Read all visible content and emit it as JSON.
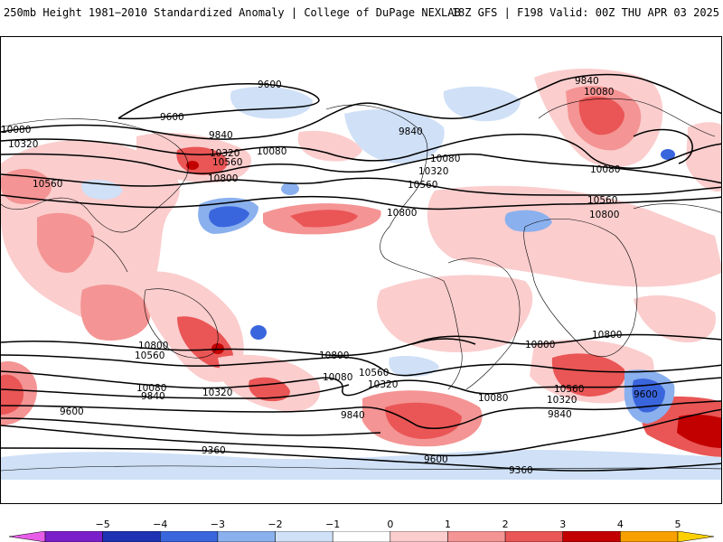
{
  "header": {
    "title_left": "250mb Height 1981−2010 Standardized Anomaly | College of DuPage NEXLAB",
    "title_right": "18Z GFS | F198 Valid: 00Z THU APR 03 2025"
  },
  "contour_labels": [
    "9600",
    "9600",
    "9840",
    "10080",
    "10320",
    "10560",
    "10800",
    "9840",
    "10080",
    "10320",
    "10560",
    "10800",
    "9840",
    "10080",
    "10080",
    "10320",
    "10560",
    "10800",
    "10080",
    "10320",
    "10560",
    "10800",
    "10560",
    "10800",
    "10560",
    "10080",
    "10320",
    "10080",
    "9840",
    "10320",
    "9600",
    "9360",
    "10800",
    "10800",
    "10560",
    "10320",
    "10080",
    "9840",
    "10560",
    "10320",
    "9840",
    "9600",
    "9600",
    "9360"
  ],
  "colorbar": {
    "tick_labels": [
      "−5",
      "−4",
      "−3",
      "−2",
      "−1",
      "0",
      "1",
      "2",
      "3",
      "4",
      "5"
    ],
    "colors": [
      "#e75de8",
      "#7a1fc9",
      "#1d33b3",
      "#3a66dd",
      "#8ab0ee",
      "#cfe0f7",
      "#ffffff",
      "#fbcdcd",
      "#f49494",
      "#ea5555",
      "#c30000",
      "#f7a000",
      "#ffd000"
    ]
  }
}
